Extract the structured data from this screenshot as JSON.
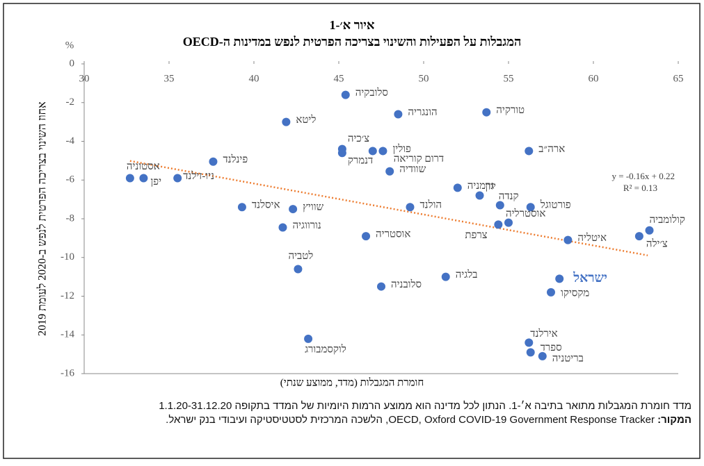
{
  "title": "איור א׳-1",
  "subtitle": "המגבלות על הפעילות והשינוי בצריכה הפרטית לנפש במדינות ה-OECD",
  "notes": {
    "text": "מדד חומרת המגבלות מתואר בתיבה א׳-1. הנתון לכל מדינה הוא ממוצע הרמות היומיות של המדד בתקופה 1.1.20-31.12.20",
    "source_label": "המקור:",
    "source": "OECD, Oxford COVID-19 Government Response Tracker, הלשכה המרכזית לסטטיסטיקה ועיבודי בנק ישראל."
  },
  "chart_data": {
    "type": "scatter",
    "x_label": "חומרת המגבלות (מדד, ממוצע שנתי)",
    "y_label": "אחוז השינוי בצריכה הפרטית לנפש ב-2020 לעומת 2019",
    "y_unit": "%",
    "color": "#4472c4",
    "labels": [
      "סלובקיה",
      "הונגריה",
      "טורקיה",
      "ליטא",
      "ארה״ב",
      "צ׳כיה",
      "דנמרק",
      "דרום קוריאה",
      "פולין",
      "שוודיה",
      "פינלנד",
      "אסטוניה",
      "יפן",
      "ניו-זילנד",
      "גרמניה",
      "יוון",
      "קנדה",
      "פורטוגל",
      "הולנד",
      "איסלנד",
      "שוויץ",
      "אוסטרליה",
      "צרפת",
      "נורווגיה",
      "אוסטריה",
      "איטליה",
      "קולומביה",
      "צ׳ילה",
      "לטביה",
      "בלגיה",
      "סלובניה",
      "ישראל",
      "מקסיקו",
      "לוקסמבורג",
      "אירלנד",
      "ספרד",
      "בריטניה"
    ],
    "x": [
      45.4,
      48.5,
      53.7,
      41.9,
      56.2,
      45.2,
      45.2,
      47.0,
      47.6,
      48.0,
      37.6,
      32.7,
      33.5,
      35.5,
      52.0,
      53.3,
      54.5,
      56.3,
      49.2,
      39.3,
      42.3,
      55.0,
      54.4,
      41.7,
      46.6,
      58.5,
      63.3,
      62.7,
      42.6,
      51.3,
      47.5,
      58.0,
      57.5,
      43.2,
      56.2,
      56.3,
      57.0
    ],
    "values": [
      -1.6,
      -2.6,
      -2.5,
      -3.0,
      -4.5,
      -4.4,
      -4.6,
      -4.5,
      -4.5,
      -5.55,
      -5.05,
      -5.9,
      -5.9,
      -5.9,
      -6.4,
      -6.8,
      -7.3,
      -7.4,
      -7.4,
      -7.4,
      -7.5,
      -8.2,
      -8.3,
      -8.45,
      -8.9,
      -9.1,
      -8.6,
      -8.9,
      -10.6,
      -11.0,
      -11.5,
      -11.1,
      -11.8,
      -14.2,
      -14.4,
      -14.9,
      -15.1
    ],
    "xlim": [
      30,
      65
    ],
    "xticks": [
      30,
      35,
      40,
      45,
      50,
      55,
      60,
      65
    ],
    "ylim": [
      -16,
      0
    ],
    "yticks": [
      0,
      -2,
      -4,
      -6,
      -8,
      -10,
      -12,
      -14,
      -16
    ],
    "trendline": {
      "equation": "y = -0.16x + 0.22",
      "r2": "R² = 0.13",
      "slope": -0.16,
      "intercept": 0.22,
      "x": [
        32.7,
        63.2
      ],
      "color": "#ed7d31"
    }
  }
}
